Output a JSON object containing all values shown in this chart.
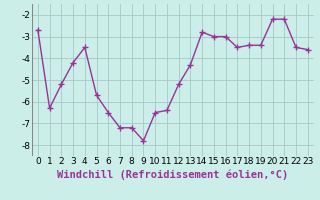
{
  "x": [
    0,
    1,
    2,
    3,
    4,
    5,
    6,
    7,
    8,
    9,
    10,
    11,
    12,
    13,
    14,
    15,
    16,
    17,
    18,
    19,
    20,
    21,
    22,
    23
  ],
  "y": [
    -2.7,
    -6.3,
    -5.2,
    -4.2,
    -3.5,
    -5.7,
    -6.5,
    -7.2,
    -7.2,
    -7.8,
    -6.5,
    -6.4,
    -5.2,
    -4.3,
    -2.8,
    -3.0,
    -3.0,
    -3.5,
    -3.4,
    -3.4,
    -2.2,
    -2.2,
    -3.5,
    -3.6
  ],
  "line_color": "#993399",
  "marker": "+",
  "marker_size": 4,
  "line_width": 1.0,
  "bg_color": "#cceee8",
  "grid_color": "#aacccc",
  "xlabel": "Windchill (Refroidissement éolien,°C)",
  "xlabel_fontsize": 7.5,
  "tick_fontsize": 6.5,
  "ylim": [
    -8.5,
    -1.5
  ],
  "xlim": [
    -0.5,
    23.5
  ],
  "yticks": [
    -8,
    -7,
    -6,
    -5,
    -4,
    -3,
    -2
  ],
  "xticks": [
    0,
    1,
    2,
    3,
    4,
    5,
    6,
    7,
    8,
    9,
    10,
    11,
    12,
    13,
    14,
    15,
    16,
    17,
    18,
    19,
    20,
    21,
    22,
    23
  ]
}
